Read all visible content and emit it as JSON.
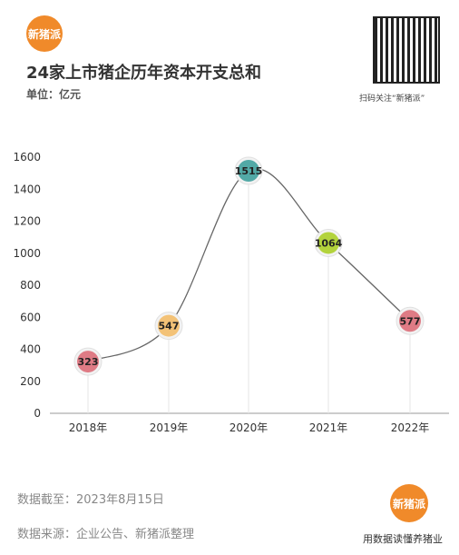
{
  "brand": {
    "logo_text": "新猪派"
  },
  "header": {
    "title": "24家上市猪企历年资本开支总和",
    "unit": "单位：亿元"
  },
  "qr": {
    "label": "扫码关注“新猪派”",
    "badge_icon": "qr-code-icon"
  },
  "footer": {
    "date_note": "数据截至：2023年8月15日",
    "source": "数据来源：企业公告、新猪派整理",
    "slogan": "用数据读懂养猪业"
  },
  "chart_data": {
    "type": "line",
    "categories": [
      "2018年",
      "2019年",
      "2020年",
      "2021年",
      "2022年"
    ],
    "values": [
      323,
      547,
      1515,
      1064,
      577
    ],
    "labels": [
      "323",
      "547",
      "1515",
      "1064",
      "577"
    ],
    "point_colors": [
      "#df7b85",
      "#f3c277",
      "#52a9a6",
      "#b3d33c",
      "#df7b85"
    ],
    "ylim": [
      0,
      1600
    ],
    "yticks": [
      "0",
      "200",
      "400",
      "600",
      "800",
      "1000",
      "1200",
      "1400",
      "1600"
    ],
    "line_color": "#666666",
    "grid": false
  }
}
